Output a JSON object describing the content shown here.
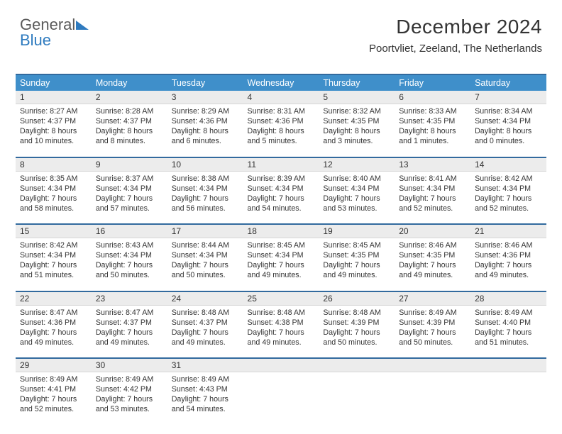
{
  "logo": {
    "word1": "General",
    "word2": "Blue"
  },
  "header": {
    "title": "December 2024",
    "location": "Poortvliet, Zeeland, The Netherlands"
  },
  "colors": {
    "header_band": "#3f8fca",
    "rule": "#326a9e",
    "daynum_bg": "#ececec",
    "logo_gray": "#5a5a5a",
    "logo_blue": "#2f7bbf"
  },
  "weekdays": [
    "Sunday",
    "Monday",
    "Tuesday",
    "Wednesday",
    "Thursday",
    "Friday",
    "Saturday"
  ],
  "weeks": [
    [
      {
        "n": "1",
        "sunrise": "8:27 AM",
        "sunset": "4:37 PM",
        "day_h": 8,
        "day_m": 10
      },
      {
        "n": "2",
        "sunrise": "8:28 AM",
        "sunset": "4:37 PM",
        "day_h": 8,
        "day_m": 8
      },
      {
        "n": "3",
        "sunrise": "8:29 AM",
        "sunset": "4:36 PM",
        "day_h": 8,
        "day_m": 6
      },
      {
        "n": "4",
        "sunrise": "8:31 AM",
        "sunset": "4:36 PM",
        "day_h": 8,
        "day_m": 5
      },
      {
        "n": "5",
        "sunrise": "8:32 AM",
        "sunset": "4:35 PM",
        "day_h": 8,
        "day_m": 3
      },
      {
        "n": "6",
        "sunrise": "8:33 AM",
        "sunset": "4:35 PM",
        "day_h": 8,
        "day_m": 1
      },
      {
        "n": "7",
        "sunrise": "8:34 AM",
        "sunset": "4:34 PM",
        "day_h": 8,
        "day_m": 0
      }
    ],
    [
      {
        "n": "8",
        "sunrise": "8:35 AM",
        "sunset": "4:34 PM",
        "day_h": 7,
        "day_m": 58
      },
      {
        "n": "9",
        "sunrise": "8:37 AM",
        "sunset": "4:34 PM",
        "day_h": 7,
        "day_m": 57
      },
      {
        "n": "10",
        "sunrise": "8:38 AM",
        "sunset": "4:34 PM",
        "day_h": 7,
        "day_m": 56
      },
      {
        "n": "11",
        "sunrise": "8:39 AM",
        "sunset": "4:34 PM",
        "day_h": 7,
        "day_m": 54
      },
      {
        "n": "12",
        "sunrise": "8:40 AM",
        "sunset": "4:34 PM",
        "day_h": 7,
        "day_m": 53
      },
      {
        "n": "13",
        "sunrise": "8:41 AM",
        "sunset": "4:34 PM",
        "day_h": 7,
        "day_m": 52
      },
      {
        "n": "14",
        "sunrise": "8:42 AM",
        "sunset": "4:34 PM",
        "day_h": 7,
        "day_m": 52
      }
    ],
    [
      {
        "n": "15",
        "sunrise": "8:42 AM",
        "sunset": "4:34 PM",
        "day_h": 7,
        "day_m": 51
      },
      {
        "n": "16",
        "sunrise": "8:43 AM",
        "sunset": "4:34 PM",
        "day_h": 7,
        "day_m": 50
      },
      {
        "n": "17",
        "sunrise": "8:44 AM",
        "sunset": "4:34 PM",
        "day_h": 7,
        "day_m": 50
      },
      {
        "n": "18",
        "sunrise": "8:45 AM",
        "sunset": "4:34 PM",
        "day_h": 7,
        "day_m": 49
      },
      {
        "n": "19",
        "sunrise": "8:45 AM",
        "sunset": "4:35 PM",
        "day_h": 7,
        "day_m": 49
      },
      {
        "n": "20",
        "sunrise": "8:46 AM",
        "sunset": "4:35 PM",
        "day_h": 7,
        "day_m": 49
      },
      {
        "n": "21",
        "sunrise": "8:46 AM",
        "sunset": "4:36 PM",
        "day_h": 7,
        "day_m": 49
      }
    ],
    [
      {
        "n": "22",
        "sunrise": "8:47 AM",
        "sunset": "4:36 PM",
        "day_h": 7,
        "day_m": 49
      },
      {
        "n": "23",
        "sunrise": "8:47 AM",
        "sunset": "4:37 PM",
        "day_h": 7,
        "day_m": 49
      },
      {
        "n": "24",
        "sunrise": "8:48 AM",
        "sunset": "4:37 PM",
        "day_h": 7,
        "day_m": 49
      },
      {
        "n": "25",
        "sunrise": "8:48 AM",
        "sunset": "4:38 PM",
        "day_h": 7,
        "day_m": 49
      },
      {
        "n": "26",
        "sunrise": "8:48 AM",
        "sunset": "4:39 PM",
        "day_h": 7,
        "day_m": 50
      },
      {
        "n": "27",
        "sunrise": "8:49 AM",
        "sunset": "4:39 PM",
        "day_h": 7,
        "day_m": 50
      },
      {
        "n": "28",
        "sunrise": "8:49 AM",
        "sunset": "4:40 PM",
        "day_h": 7,
        "day_m": 51
      }
    ],
    [
      {
        "n": "29",
        "sunrise": "8:49 AM",
        "sunset": "4:41 PM",
        "day_h": 7,
        "day_m": 52
      },
      {
        "n": "30",
        "sunrise": "8:49 AM",
        "sunset": "4:42 PM",
        "day_h": 7,
        "day_m": 53
      },
      {
        "n": "31",
        "sunrise": "8:49 AM",
        "sunset": "4:43 PM",
        "day_h": 7,
        "day_m": 54
      },
      null,
      null,
      null,
      null
    ]
  ],
  "labels": {
    "sunrise": "Sunrise:",
    "sunset": "Sunset:",
    "daylight": "Daylight:",
    "hours": "hours",
    "and": "and",
    "minutes": "minutes."
  }
}
